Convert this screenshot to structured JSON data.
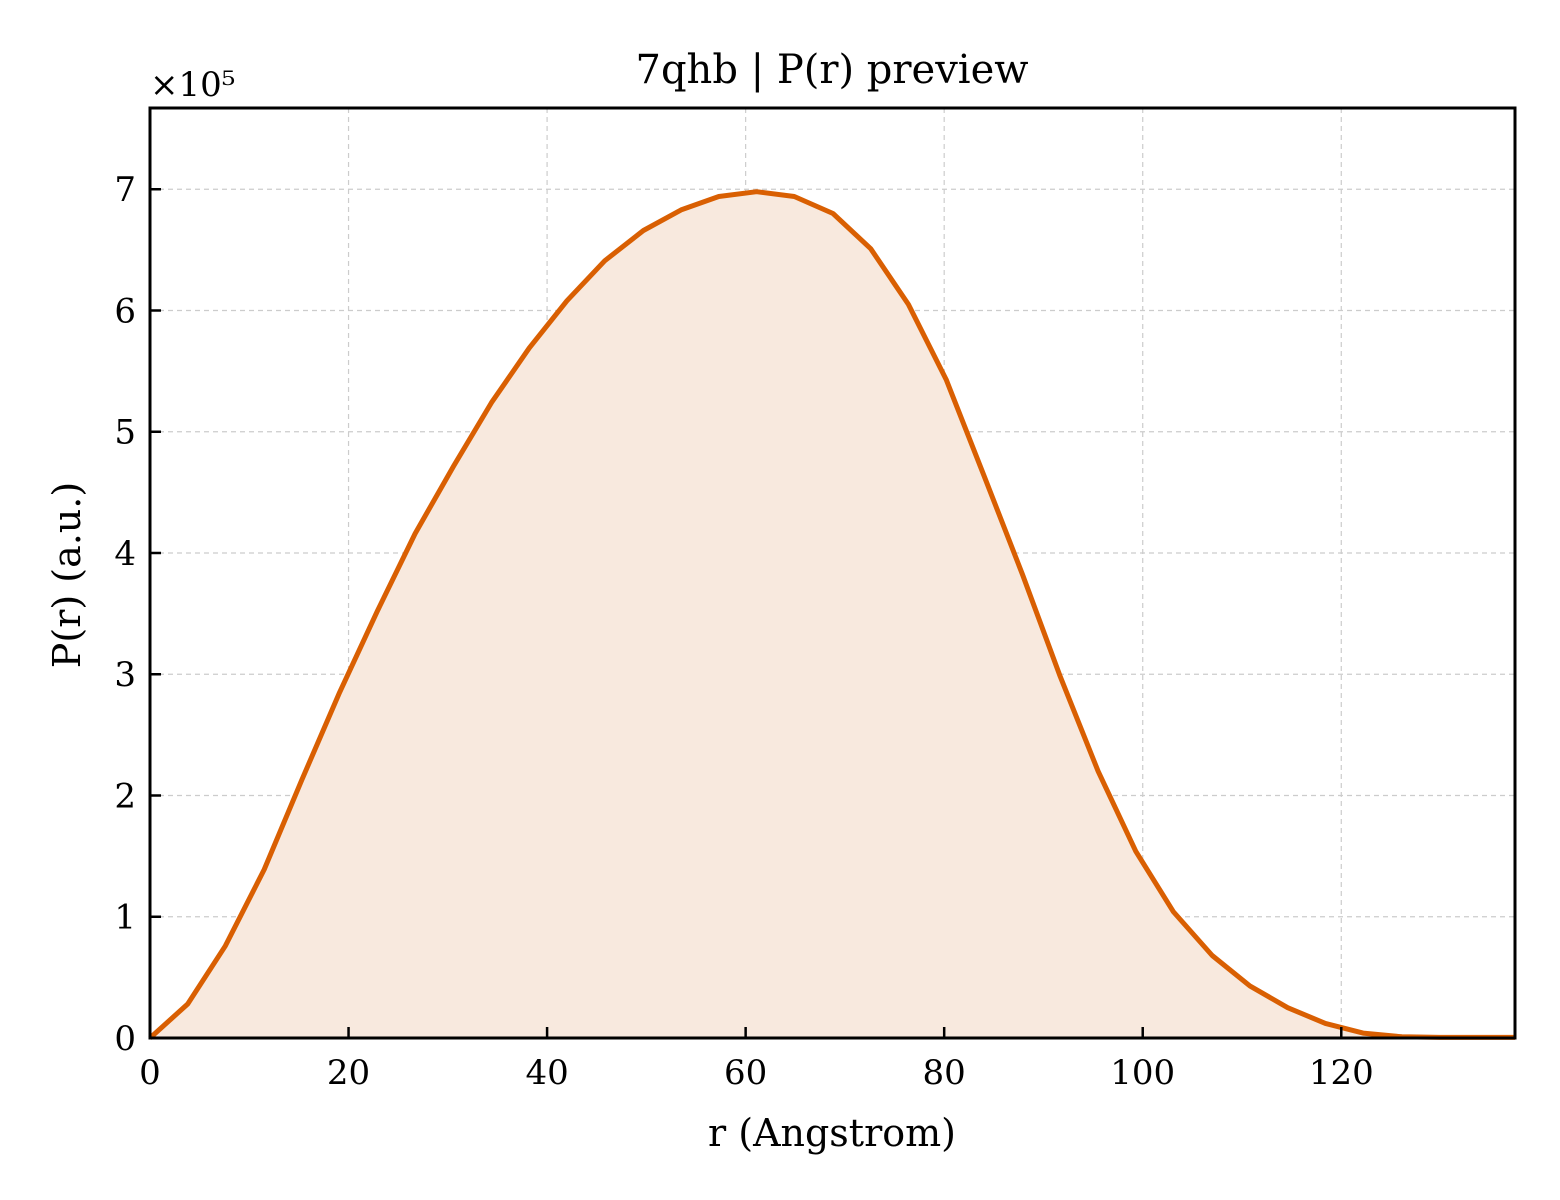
{
  "chart_data": {
    "type": "area",
    "title": "7qhb | P(r) preview",
    "xlabel": "r (Angstrom)",
    "ylabel": "P(r) (a.u.)",
    "y_multiplier": "×10⁵",
    "xlim": [
      0,
      137.5
    ],
    "ylim": [
      0,
      7.67
    ],
    "xticks": [
      0,
      20,
      40,
      60,
      80,
      100,
      120
    ],
    "yticks": [
      0,
      1,
      2,
      3,
      4,
      5,
      6,
      7
    ],
    "grid": true,
    "line_color": "#d95f02",
    "fill_color": "#f8e9de",
    "series": [
      {
        "x": [
          0,
          3.8,
          7.6,
          11.5,
          15.3,
          19.1,
          22.9,
          26.7,
          30.6,
          34.4,
          38.2,
          42.0,
          45.8,
          49.7,
          53.5,
          57.3,
          61.1,
          64.9,
          68.8,
          72.6,
          76.4,
          80.2,
          84.0,
          87.9,
          91.7,
          95.5,
          99.3,
          103.1,
          107.0,
          110.8,
          114.6,
          118.4,
          122.2,
          126.1,
          129.9,
          133.7,
          137.5
        ],
        "y": [
          0,
          0.28,
          0.76,
          1.39,
          2.13,
          2.85,
          3.52,
          4.16,
          4.72,
          5.24,
          5.69,
          6.08,
          6.41,
          6.66,
          6.83,
          6.94,
          6.98,
          6.94,
          6.8,
          6.51,
          6.05,
          5.43,
          4.64,
          3.82,
          2.98,
          2.2,
          1.54,
          1.04,
          0.68,
          0.43,
          0.25,
          0.12,
          0.04,
          0.01,
          0.005,
          0.005,
          0.005
        ]
      }
    ]
  }
}
